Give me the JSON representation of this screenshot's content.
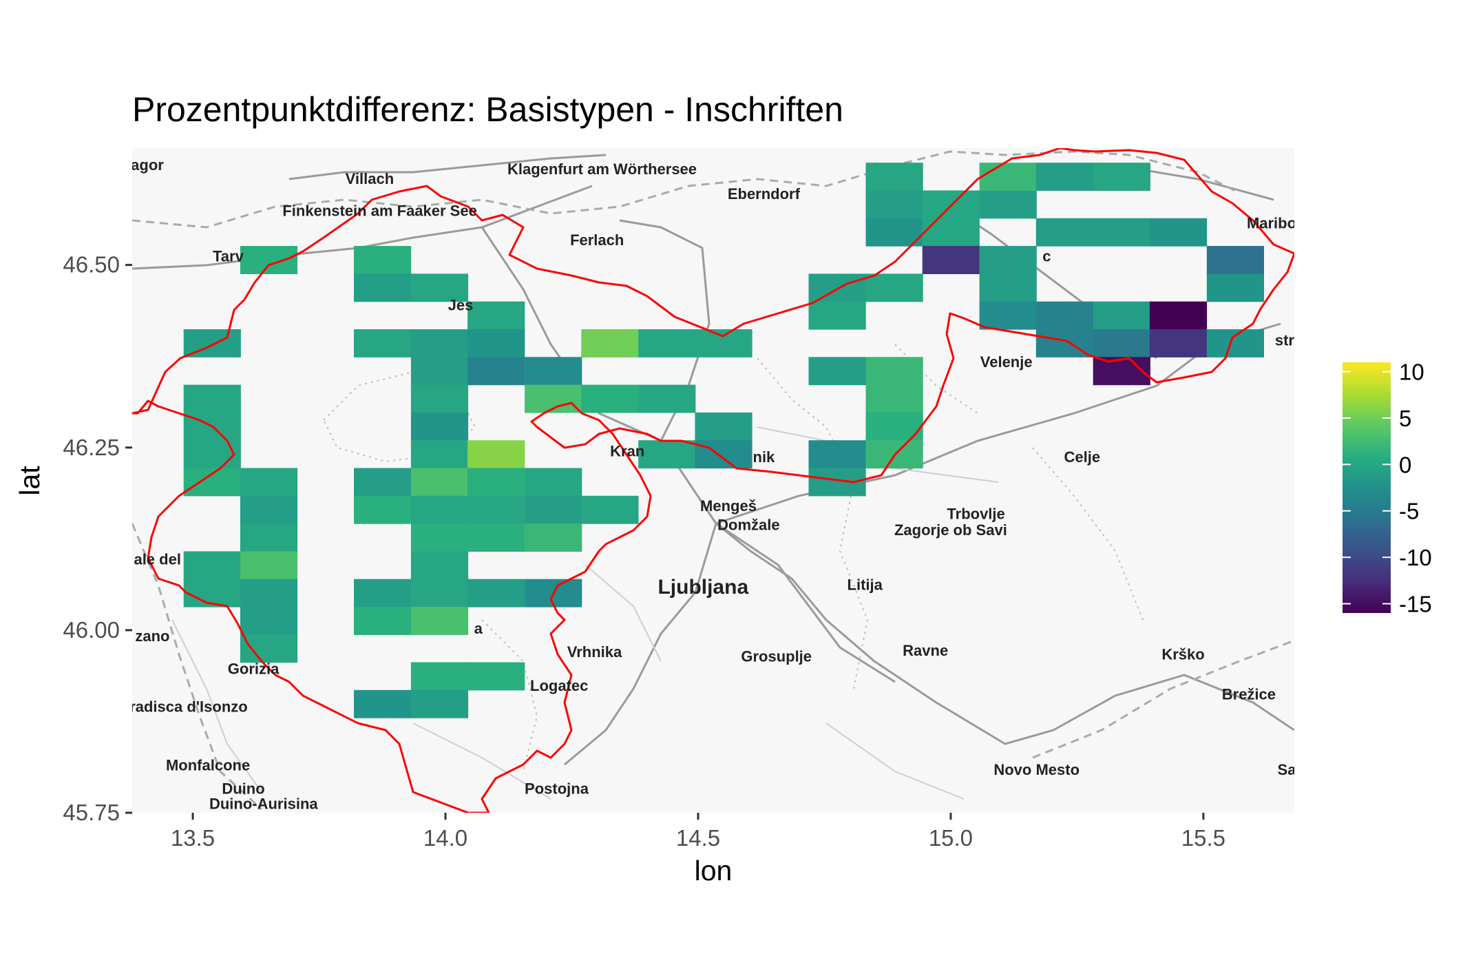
{
  "chart_data": {
    "type": "heatmap",
    "title": "Prozentpunktdifferenz: Basistypen - Inschriften",
    "xlabel": "lon",
    "ylabel": "lat",
    "xlim": [
      13.38,
      15.68
    ],
    "ylim": [
      45.75,
      46.66
    ],
    "x_ticks": [
      13.5,
      14.0,
      14.5,
      15.0,
      15.5
    ],
    "x_tick_labels": [
      "13.5",
      "14.0",
      "14.5",
      "15.0",
      "15.5"
    ],
    "y_ticks": [
      45.75,
      46.0,
      46.25,
      46.5
    ],
    "y_tick_labels": [
      "45.75",
      "46.00",
      "46.25",
      "46.50"
    ],
    "cell_width_deg": 0.1125,
    "cell_height_deg": 0.038,
    "colorscale": "viridis",
    "value_range": [
      -16,
      11
    ],
    "legend": {
      "position": "right",
      "ticks": [
        10,
        5,
        0,
        -5,
        -10,
        -15
      ],
      "tick_labels": [
        "10",
        "5",
        "0",
        "-5",
        "-10",
        "-15"
      ]
    },
    "cells": [
      {
        "lon": 13.65,
        "lat": 46.507,
        "value": 1
      },
      {
        "lon": 13.875,
        "lat": 46.507,
        "value": 1
      },
      {
        "lon": 13.875,
        "lat": 46.469,
        "value": -1
      },
      {
        "lon": 13.988,
        "lat": 46.469,
        "value": 0
      },
      {
        "lon": 14.1,
        "lat": 46.431,
        "value": 0
      },
      {
        "lon": 13.538,
        "lat": 46.393,
        "value": -1
      },
      {
        "lon": 13.875,
        "lat": 46.393,
        "value": 0
      },
      {
        "lon": 13.988,
        "lat": 46.393,
        "value": -1
      },
      {
        "lon": 14.1,
        "lat": 46.393,
        "value": -2
      },
      {
        "lon": 14.325,
        "lat": 46.393,
        "value": 5
      },
      {
        "lon": 14.438,
        "lat": 46.393,
        "value": 0
      },
      {
        "lon": 14.55,
        "lat": 46.393,
        "value": 0
      },
      {
        "lon": 13.988,
        "lat": 46.355,
        "value": -1
      },
      {
        "lon": 14.1,
        "lat": 46.355,
        "value": -4
      },
      {
        "lon": 14.213,
        "lat": 46.355,
        "value": -3
      },
      {
        "lon": 13.538,
        "lat": 46.317,
        "value": 0
      },
      {
        "lon": 13.988,
        "lat": 46.317,
        "value": 0
      },
      {
        "lon": 14.213,
        "lat": 46.317,
        "value": 3
      },
      {
        "lon": 14.325,
        "lat": 46.317,
        "value": 1
      },
      {
        "lon": 14.438,
        "lat": 46.317,
        "value": 0
      },
      {
        "lon": 13.538,
        "lat": 46.279,
        "value": 0
      },
      {
        "lon": 13.988,
        "lat": 46.279,
        "value": -2
      },
      {
        "lon": 14.55,
        "lat": 46.279,
        "value": -1
      },
      {
        "lon": 13.538,
        "lat": 46.241,
        "value": 0
      },
      {
        "lon": 13.988,
        "lat": 46.241,
        "value": 0
      },
      {
        "lon": 14.1,
        "lat": 46.241,
        "value": 6
      },
      {
        "lon": 14.438,
        "lat": 46.241,
        "value": 0
      },
      {
        "lon": 14.55,
        "lat": 46.241,
        "value": -3
      },
      {
        "lon": 13.538,
        "lat": 46.203,
        "value": 1
      },
      {
        "lon": 13.65,
        "lat": 46.203,
        "value": 0
      },
      {
        "lon": 13.875,
        "lat": 46.203,
        "value": -1
      },
      {
        "lon": 13.988,
        "lat": 46.203,
        "value": 3
      },
      {
        "lon": 14.1,
        "lat": 46.203,
        "value": 1
      },
      {
        "lon": 14.213,
        "lat": 46.203,
        "value": 0
      },
      {
        "lon": 13.65,
        "lat": 46.165,
        "value": -1
      },
      {
        "lon": 13.875,
        "lat": 46.165,
        "value": 1
      },
      {
        "lon": 13.988,
        "lat": 46.165,
        "value": 0
      },
      {
        "lon": 14.1,
        "lat": 46.165,
        "value": 0
      },
      {
        "lon": 14.213,
        "lat": 46.165,
        "value": -1
      },
      {
        "lon": 14.325,
        "lat": 46.165,
        "value": 0
      },
      {
        "lon": 13.65,
        "lat": 46.127,
        "value": 0
      },
      {
        "lon": 13.988,
        "lat": 46.127,
        "value": 1
      },
      {
        "lon": 14.1,
        "lat": 46.127,
        "value": 1
      },
      {
        "lon": 14.213,
        "lat": 46.127,
        "value": 2
      },
      {
        "lon": 13.538,
        "lat": 46.089,
        "value": 0
      },
      {
        "lon": 13.65,
        "lat": 46.089,
        "value": 3
      },
      {
        "lon": 13.988,
        "lat": 46.089,
        "value": 0
      },
      {
        "lon": 13.538,
        "lat": 46.051,
        "value": 0
      },
      {
        "lon": 13.65,
        "lat": 46.051,
        "value": -1
      },
      {
        "lon": 13.875,
        "lat": 46.051,
        "value": -1
      },
      {
        "lon": 13.988,
        "lat": 46.051,
        "value": 0
      },
      {
        "lon": 14.1,
        "lat": 46.051,
        "value": -1
      },
      {
        "lon": 14.213,
        "lat": 46.051,
        "value": -3
      },
      {
        "lon": 13.65,
        "lat": 46.013,
        "value": -1
      },
      {
        "lon": 13.875,
        "lat": 46.013,
        "value": 1
      },
      {
        "lon": 13.988,
        "lat": 46.013,
        "value": 3
      },
      {
        "lon": 13.65,
        "lat": 45.975,
        "value": 0
      },
      {
        "lon": 13.988,
        "lat": 45.937,
        "value": 1
      },
      {
        "lon": 14.1,
        "lat": 45.937,
        "value": 1
      },
      {
        "lon": 13.875,
        "lat": 45.899,
        "value": -2
      },
      {
        "lon": 13.988,
        "lat": 45.899,
        "value": -1
      },
      {
        "lon": 14.775,
        "lat": 46.469,
        "value": -1
      },
      {
        "lon": 14.888,
        "lat": 46.469,
        "value": 0
      },
      {
        "lon": 14.775,
        "lat": 46.431,
        "value": 0
      },
      {
        "lon": 14.775,
        "lat": 46.355,
        "value": -1
      },
      {
        "lon": 14.888,
        "lat": 46.355,
        "value": 2
      },
      {
        "lon": 14.888,
        "lat": 46.317,
        "value": 2
      },
      {
        "lon": 14.888,
        "lat": 46.279,
        "value": 1
      },
      {
        "lon": 14.775,
        "lat": 46.241,
        "value": -3
      },
      {
        "lon": 14.888,
        "lat": 46.241,
        "value": 2
      },
      {
        "lon": 14.775,
        "lat": 46.203,
        "value": -1
      },
      {
        "lon": 14.888,
        "lat": 46.621,
        "value": 0
      },
      {
        "lon": 14.888,
        "lat": 46.583,
        "value": -1
      },
      {
        "lon": 15.0,
        "lat": 46.583,
        "value": 0
      },
      {
        "lon": 15.113,
        "lat": 46.583,
        "value": -1
      },
      {
        "lon": 14.888,
        "lat": 46.545,
        "value": -2
      },
      {
        "lon": 15.0,
        "lat": 46.545,
        "value": 0
      },
      {
        "lon": 15.113,
        "lat": 46.621,
        "value": 2
      },
      {
        "lon": 15.225,
        "lat": 46.621,
        "value": -1
      },
      {
        "lon": 15.338,
        "lat": 46.621,
        "value": 0
      },
      {
        "lon": 15.225,
        "lat": 46.545,
        "value": -1
      },
      {
        "lon": 15.338,
        "lat": 46.545,
        "value": -1
      },
      {
        "lon": 15.45,
        "lat": 46.545,
        "value": -2
      },
      {
        "lon": 15.0,
        "lat": 46.507,
        "value": -12
      },
      {
        "lon": 15.113,
        "lat": 46.507,
        "value": -1
      },
      {
        "lon": 15.563,
        "lat": 46.507,
        "value": -6
      },
      {
        "lon": 15.113,
        "lat": 46.469,
        "value": -1
      },
      {
        "lon": 15.563,
        "lat": 46.469,
        "value": -2
      },
      {
        "lon": 15.113,
        "lat": 46.431,
        "value": -3
      },
      {
        "lon": 15.225,
        "lat": 46.431,
        "value": -4
      },
      {
        "lon": 15.338,
        "lat": 46.431,
        "value": -1
      },
      {
        "lon": 15.45,
        "lat": 46.431,
        "value": -16
      },
      {
        "lon": 15.225,
        "lat": 46.393,
        "value": -4
      },
      {
        "lon": 15.338,
        "lat": 46.393,
        "value": -5
      },
      {
        "lon": 15.45,
        "lat": 46.393,
        "value": -12
      },
      {
        "lon": 15.563,
        "lat": 46.393,
        "value": -2
      },
      {
        "lon": 15.338,
        "lat": 46.355,
        "value": -15
      }
    ]
  },
  "basemap": {
    "places": [
      {
        "name": "agor",
        "lon": 13.41,
        "lat": 46.63
      },
      {
        "name": "Villach",
        "lon": 13.85,
        "lat": 46.611
      },
      {
        "name": "Klagenfurt am Wörthersee",
        "lon": 14.31,
        "lat": 46.624
      },
      {
        "name": "Eberndorf",
        "lon": 14.63,
        "lat": 46.59
      },
      {
        "name": "Finkenstein am Faaker See",
        "lon": 13.87,
        "lat": 46.567
      },
      {
        "name": "Ferlach",
        "lon": 14.3,
        "lat": 46.527
      },
      {
        "name": "Maribo",
        "lon": 15.635,
        "lat": 46.55
      },
      {
        "name": "Tarv",
        "lon": 13.57,
        "lat": 46.505
      },
      {
        "name": "Jes",
        "lon": 14.03,
        "lat": 46.438
      },
      {
        "name": "c",
        "lon": 15.19,
        "lat": 46.505
      },
      {
        "name": "Velenje",
        "lon": 15.11,
        "lat": 46.36
      },
      {
        "name": "stri",
        "lon": 15.665,
        "lat": 46.39
      },
      {
        "name": "Kran",
        "lon": 14.36,
        "lat": 46.238
      },
      {
        "name": "nik",
        "lon": 14.63,
        "lat": 46.23
      },
      {
        "name": "Celje",
        "lon": 15.26,
        "lat": 46.23
      },
      {
        "name": "Mengeš",
        "lon": 14.56,
        "lat": 46.163
      },
      {
        "name": "Domžale",
        "lon": 14.6,
        "lat": 46.137
      },
      {
        "name": "Trbovlje",
        "lon": 15.05,
        "lat": 46.152
      },
      {
        "name": "Zagorje ob Savi",
        "lon": 15.0,
        "lat": 46.13
      },
      {
        "name": "ale del",
        "lon": 13.43,
        "lat": 46.09
      },
      {
        "name": "Ljubljana",
        "lon": 14.51,
        "lat": 46.05,
        "big": true
      },
      {
        "name": "Litija",
        "lon": 14.83,
        "lat": 46.055
      },
      {
        "name": "zano",
        "lon": 13.42,
        "lat": 45.985
      },
      {
        "name": "a",
        "lon": 14.065,
        "lat": 45.995
      },
      {
        "name": "Vrhnika",
        "lon": 14.295,
        "lat": 45.963
      },
      {
        "name": "Grosuplje",
        "lon": 14.655,
        "lat": 45.957
      },
      {
        "name": "Ravne",
        "lon": 14.95,
        "lat": 45.965
      },
      {
        "name": "Krško",
        "lon": 15.46,
        "lat": 45.96
      },
      {
        "name": "Gorizia",
        "lon": 13.62,
        "lat": 45.94
      },
      {
        "name": "Logatec",
        "lon": 14.225,
        "lat": 45.917
      },
      {
        "name": "Brežice",
        "lon": 15.59,
        "lat": 45.905
      },
      {
        "name": "Gradisca d'Isonzo",
        "lon": 13.48,
        "lat": 45.888
      },
      {
        "name": "Monfalcone",
        "lon": 13.53,
        "lat": 45.808
      },
      {
        "name": "Novo Mesto",
        "lon": 15.17,
        "lat": 45.802
      },
      {
        "name": "Sa",
        "lon": 15.665,
        "lat": 45.802
      },
      {
        "name": "Duino",
        "lon": 13.6,
        "lat": 45.776
      },
      {
        "name": "Duino-Aurisina",
        "lon": 13.64,
        "lat": 45.755
      },
      {
        "name": "Postojna",
        "lon": 14.22,
        "lat": 45.776
      }
    ]
  }
}
